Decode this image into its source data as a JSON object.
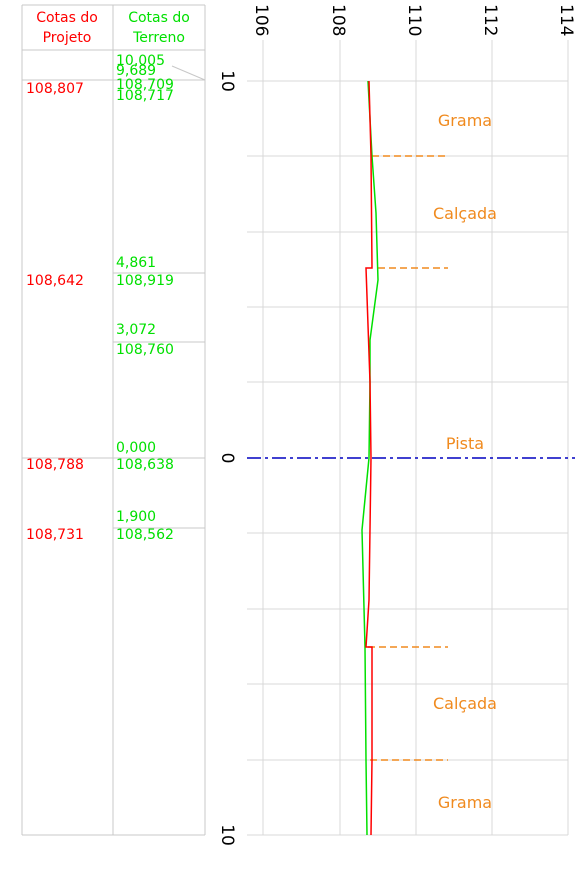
{
  "table": {
    "headers": [
      [
        "Cotas do",
        "Projeto"
      ],
      [
        "Cotas do",
        "Terreno"
      ]
    ],
    "rows": [
      {
        "terrain": [
          "10,005",
          "9,689",
          "108,709",
          "108,717"
        ],
        "project": "108,807"
      },
      {
        "terrain": [
          "4,861",
          "108,919"
        ],
        "project": "108,642"
      },
      {
        "terrain": [
          "3,072",
          "108,760"
        ]
      },
      {
        "terrain": [
          "0,000",
          "108,638"
        ],
        "project": "108,788"
      },
      {
        "terrain": [
          "1,900",
          "108,562"
        ],
        "project": "108,731"
      }
    ]
  },
  "axis": {
    "elevation_ticks": [
      "106",
      "108",
      "110",
      "112",
      "114"
    ],
    "offset_ticks": [
      "10",
      "0",
      "10"
    ]
  },
  "zones": [
    "Grama",
    "Calçada",
    "Pista",
    "Calçada",
    "Grama"
  ]
}
